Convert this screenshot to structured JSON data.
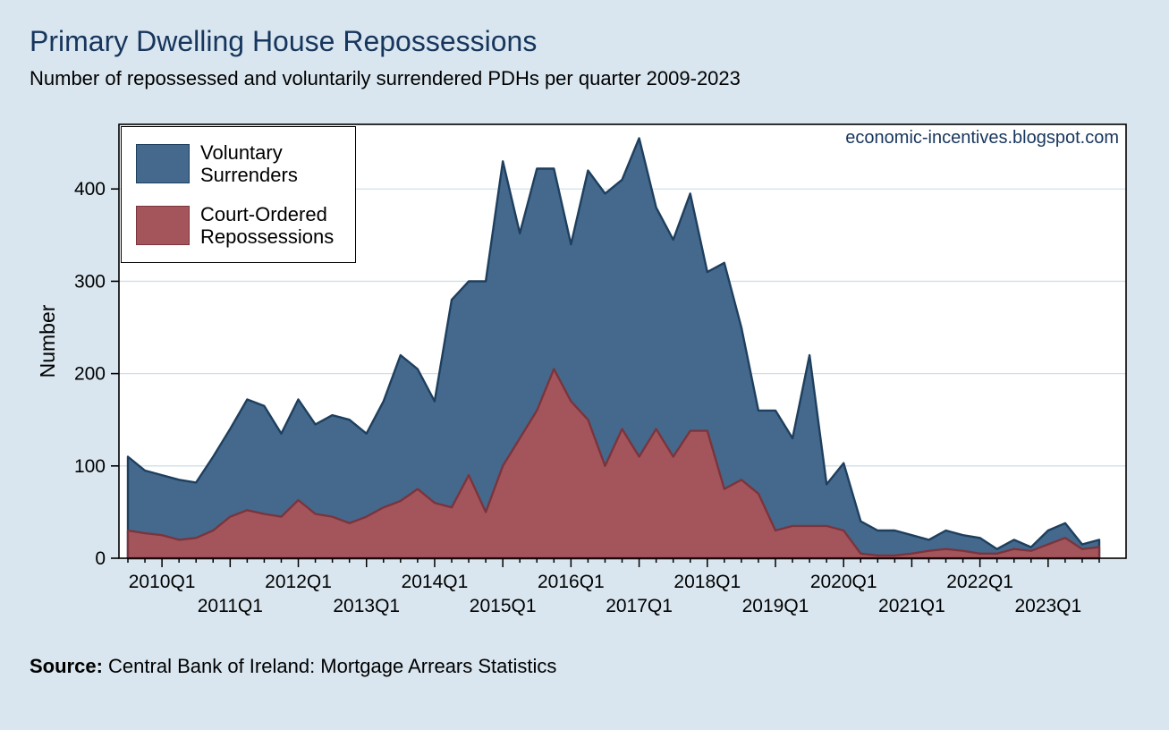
{
  "chart_data": {
    "type": "area",
    "stacked": true,
    "title": "Primary Dwelling House Repossessions",
    "subtitle": "Number of repossessed and voluntarily surrendered PDHs per quarter 2009-2023",
    "watermark": "economic-incentives.blogspot.com",
    "source_label": "Source:",
    "source_text": "Central Bank of Ireland: Mortgage Arrears Statistics",
    "ylabel": "Number",
    "ylim": [
      0,
      470
    ],
    "yticks": [
      0,
      100,
      200,
      300,
      400
    ],
    "xtick_row_top": [
      "2010Q1",
      "2012Q1",
      "2014Q1",
      "2016Q1",
      "2018Q1",
      "2020Q1",
      "2022Q1"
    ],
    "xtick_row_bottom": [
      "2011Q1",
      "2013Q1",
      "2015Q1",
      "2017Q1",
      "2019Q1",
      "2021Q1",
      "2023Q1"
    ],
    "categories": [
      "2009Q3",
      "2009Q4",
      "2010Q1",
      "2010Q2",
      "2010Q3",
      "2010Q4",
      "2011Q1",
      "2011Q2",
      "2011Q3",
      "2011Q4",
      "2012Q1",
      "2012Q2",
      "2012Q3",
      "2012Q4",
      "2013Q1",
      "2013Q2",
      "2013Q3",
      "2013Q4",
      "2014Q1",
      "2014Q2",
      "2014Q3",
      "2014Q4",
      "2015Q1",
      "2015Q2",
      "2015Q3",
      "2015Q4",
      "2016Q1",
      "2016Q2",
      "2016Q3",
      "2016Q4",
      "2017Q1",
      "2017Q2",
      "2017Q3",
      "2017Q4",
      "2018Q1",
      "2018Q2",
      "2018Q3",
      "2018Q4",
      "2019Q1",
      "2019Q2",
      "2019Q3",
      "2019Q4",
      "2020Q1",
      "2020Q2",
      "2020Q3",
      "2020Q4",
      "2021Q1",
      "2021Q2",
      "2021Q3",
      "2021Q4",
      "2022Q1",
      "2022Q2",
      "2022Q3",
      "2022Q4",
      "2023Q1",
      "2023Q2",
      "2023Q3",
      "2023Q4"
    ],
    "series": [
      {
        "name": "Voluntary Surrenders",
        "legend_lines": [
          "Voluntary",
          "Surrenders"
        ],
        "color": "#44698d",
        "stroke": "#1e3f5e",
        "values": [
          80,
          68,
          65,
          65,
          60,
          80,
          95,
          120,
          117,
          90,
          109,
          97,
          110,
          112,
          90,
          115,
          158,
          130,
          110,
          225,
          210,
          250,
          330,
          222,
          262,
          217,
          170,
          270,
          295,
          270,
          345,
          240,
          235,
          257,
          172,
          245,
          165,
          90,
          130,
          95,
          185,
          45,
          73,
          35,
          27,
          27,
          20,
          12,
          20,
          17,
          17,
          5,
          10,
          4,
          15,
          16,
          5,
          8
        ]
      },
      {
        "name": "Court-Ordered Repossessions",
        "legend_lines": [
          "Court-Ordered",
          "Repossessions"
        ],
        "color": "#a4555c",
        "stroke": "#7c343c",
        "values": [
          30,
          27,
          25,
          20,
          22,
          30,
          45,
          52,
          48,
          45,
          63,
          48,
          45,
          38,
          45,
          55,
          62,
          75,
          60,
          55,
          90,
          50,
          100,
          130,
          160,
          205,
          170,
          150,
          100,
          140,
          110,
          140,
          110,
          138,
          138,
          75,
          85,
          70,
          30,
          35,
          35,
          35,
          30,
          5,
          3,
          3,
          5,
          8,
          10,
          8,
          5,
          5,
          10,
          8,
          15,
          22,
          10,
          12
        ]
      }
    ],
    "colors": {
      "background": "#d9e6ef",
      "plot_background": "#ffffff",
      "gridline": "#cfe0ea",
      "axis": "#000000",
      "title": "#17365d",
      "watermark": "#17365d"
    }
  }
}
